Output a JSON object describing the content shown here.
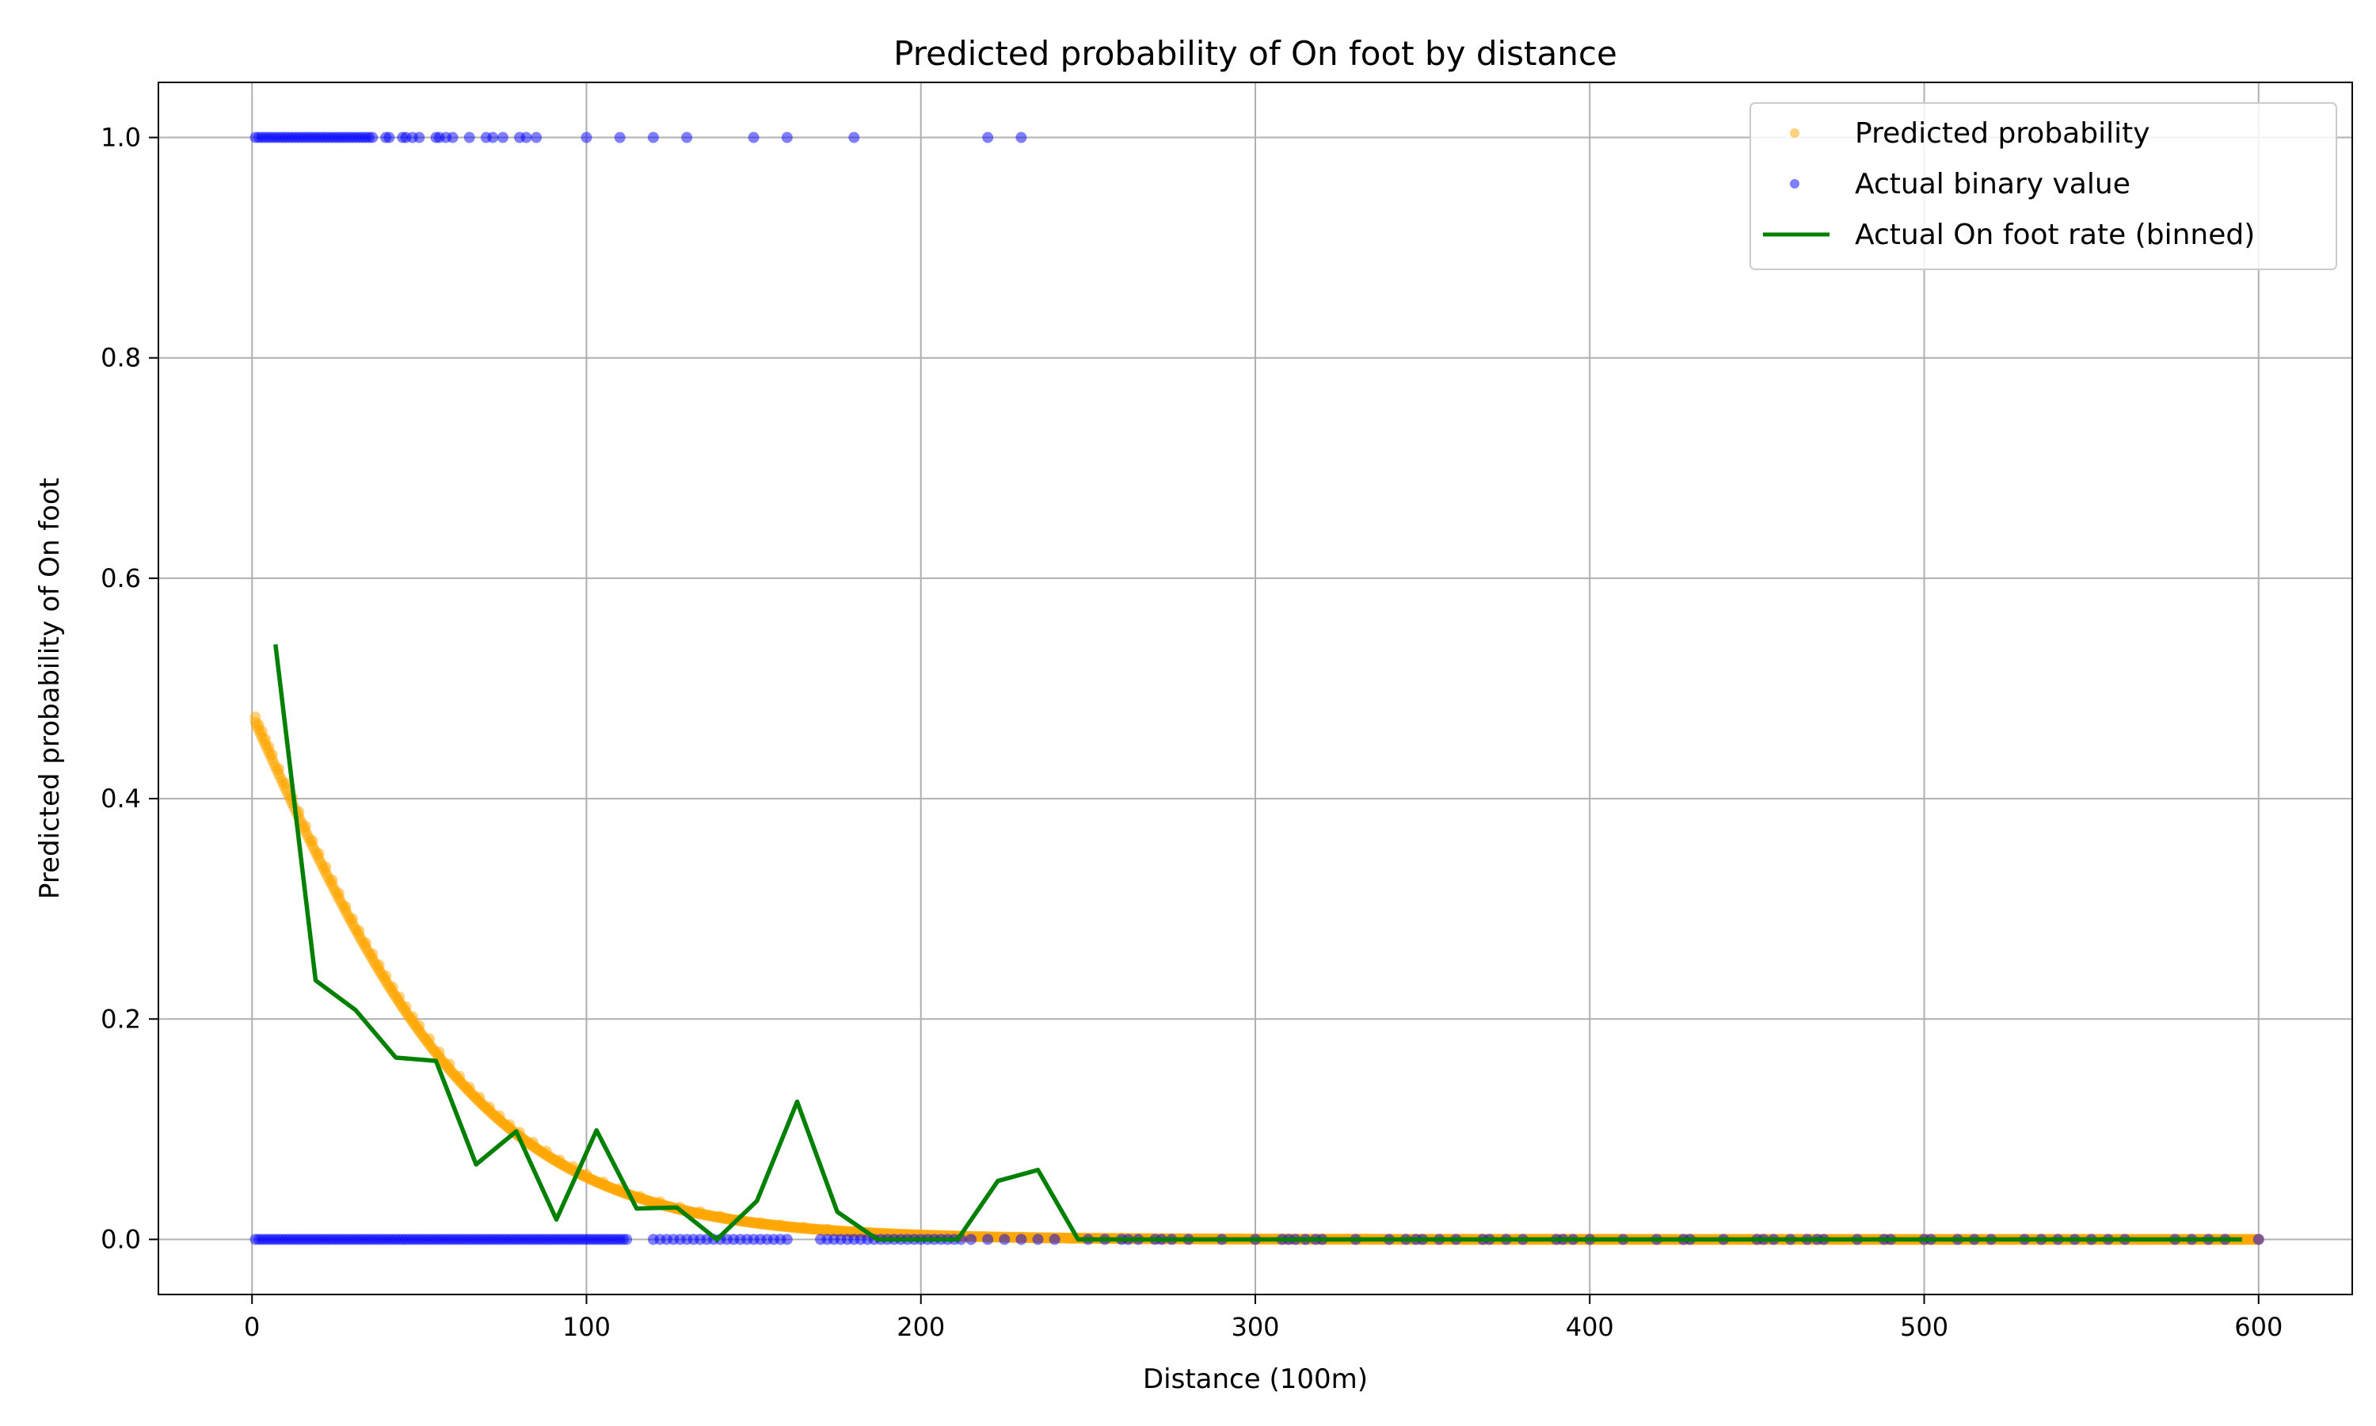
{
  "chart_data": {
    "type": "scatter",
    "title": "Predicted probability of On foot by distance",
    "xlabel": "Distance (100m)",
    "ylabel": "Predicted probability of On foot",
    "xlim": [
      -28,
      628
    ],
    "ylim": [
      -0.05,
      1.05
    ],
    "x_ticks": [
      0,
      100,
      200,
      300,
      400,
      500,
      600
    ],
    "x_tick_labels": [
      "0",
      "100",
      "200",
      "300",
      "400",
      "500",
      "600"
    ],
    "y_ticks": [
      0.0,
      0.2,
      0.4,
      0.6,
      0.8,
      1.0
    ],
    "y_tick_labels": [
      "0.0",
      "0.2",
      "0.4",
      "0.6",
      "0.8",
      "1.0"
    ],
    "grid": true,
    "legend_position": "top-right",
    "colors": {
      "predicted": "#ffa500",
      "actual": "#0000ff",
      "binned": "#008000",
      "grid": "#b0b0b0"
    },
    "predicted_model": {
      "intercept": -0.096,
      "slope": -0.0272,
      "x_start": 1,
      "x_end": 600
    },
    "series": [
      {
        "name": "Predicted probability",
        "kind": "scatter",
        "color": "#ffa500",
        "points": [
          [
            1,
            0.474
          ],
          [
            2,
            0.467
          ],
          [
            3,
            0.461
          ],
          [
            4,
            0.454
          ],
          [
            5,
            0.447
          ],
          [
            6,
            0.44
          ],
          [
            8,
            0.427
          ],
          [
            10,
            0.414
          ],
          [
            12,
            0.401
          ],
          [
            14,
            0.388
          ],
          [
            16,
            0.375
          ],
          [
            18,
            0.362
          ],
          [
            20,
            0.35
          ],
          [
            22,
            0.338
          ],
          [
            24,
            0.326
          ],
          [
            26,
            0.314
          ],
          [
            28,
            0.302
          ],
          [
            30,
            0.291
          ],
          [
            32,
            0.28
          ],
          [
            34,
            0.269
          ],
          [
            36,
            0.259
          ],
          [
            38,
            0.249
          ],
          [
            40,
            0.239
          ],
          [
            42,
            0.229
          ],
          [
            44,
            0.22
          ],
          [
            46,
            0.211
          ],
          [
            48,
            0.202
          ],
          [
            50,
            0.194
          ],
          [
            53,
            0.182
          ],
          [
            56,
            0.17
          ],
          [
            59,
            0.159
          ],
          [
            62,
            0.148
          ],
          [
            65,
            0.138
          ],
          [
            68,
            0.129
          ],
          [
            71,
            0.12
          ],
          [
            74,
            0.112
          ],
          [
            77,
            0.104
          ],
          [
            80,
            0.097
          ],
          [
            84,
            0.088
          ],
          [
            88,
            0.08
          ],
          [
            92,
            0.072
          ],
          [
            96,
            0.066
          ],
          [
            100,
            0.059
          ],
          [
            105,
            0.052
          ],
          [
            110,
            0.046
          ],
          [
            116,
            0.039
          ],
          [
            122,
            0.034
          ],
          [
            128,
            0.029
          ],
          [
            134,
            0.025
          ],
          [
            140,
            0.021
          ],
          [
            146,
            0.018
          ],
          [
            152,
            0.015
          ],
          [
            158,
            0.013
          ],
          [
            165,
            0.011
          ],
          [
            172,
            0.009
          ],
          [
            180,
            0.007
          ],
          [
            190,
            0.005
          ],
          [
            200,
            0.004
          ],
          [
            210,
            0.003
          ],
          [
            220,
            0.002
          ],
          [
            230,
            0.002
          ],
          [
            245,
            0.001
          ],
          [
            260,
            0.001
          ],
          [
            280,
            0.0
          ],
          [
            300,
            0.0
          ],
          [
            320,
            0.0
          ],
          [
            350,
            0.0
          ],
          [
            400,
            0.0
          ],
          [
            450,
            0.0
          ],
          [
            500,
            0.0
          ],
          [
            550,
            0.0
          ],
          [
            600,
            0.0
          ]
        ]
      },
      {
        "name": "Actual binary value",
        "kind": "scatter",
        "color": "#0000ff",
        "x_at_1": [
          1,
          2,
          3,
          4,
          5,
          6,
          7,
          8,
          9,
          10,
          11,
          12,
          13,
          14,
          15,
          16,
          17,
          18,
          19,
          20,
          21,
          22,
          23,
          24,
          25,
          26,
          27,
          28,
          29,
          30,
          31,
          32,
          33,
          34,
          35,
          36,
          40,
          41,
          45,
          46,
          48,
          50,
          55,
          56,
          58,
          60,
          65,
          70,
          72,
          75,
          80,
          82,
          85,
          100,
          110,
          120,
          130,
          150,
          160,
          180,
          220,
          230
        ],
        "x_at_0": [
          1,
          2,
          3,
          4,
          5,
          6,
          7,
          8,
          9,
          10,
          11,
          12,
          13,
          14,
          15,
          16,
          17,
          18,
          19,
          20,
          21,
          22,
          23,
          24,
          25,
          26,
          27,
          28,
          29,
          30,
          31,
          32,
          33,
          34,
          35,
          36,
          37,
          38,
          39,
          40,
          41,
          42,
          43,
          44,
          45,
          46,
          47,
          48,
          49,
          50,
          51,
          52,
          53,
          54,
          55,
          56,
          57,
          58,
          59,
          60,
          61,
          62,
          63,
          64,
          65,
          66,
          67,
          68,
          69,
          70,
          71,
          72,
          73,
          74,
          75,
          76,
          77,
          78,
          79,
          80,
          81,
          82,
          83,
          84,
          85,
          86,
          87,
          88,
          89,
          90,
          91,
          92,
          93,
          94,
          95,
          96,
          97,
          98,
          99,
          100,
          101,
          102,
          103,
          104,
          105,
          106,
          107,
          108,
          109,
          110,
          111,
          112,
          120,
          122,
          124,
          126,
          128,
          130,
          132,
          134,
          136,
          138,
          140,
          142,
          144,
          146,
          148,
          150,
          152,
          154,
          156,
          158,
          160,
          170,
          172,
          174,
          176,
          178,
          180,
          182,
          184,
          186,
          188,
          190,
          192,
          194,
          196,
          198,
          200,
          202,
          204,
          206,
          208,
          210,
          212,
          215,
          220,
          225,
          230,
          235,
          240,
          250,
          255,
          260,
          262,
          265,
          270,
          272,
          275,
          280,
          290,
          300,
          308,
          310,
          312,
          315,
          318,
          320,
          330,
          340,
          345,
          348,
          350,
          355,
          360,
          368,
          370,
          375,
          380,
          390,
          392,
          395,
          400,
          410,
          420,
          428,
          430,
          440,
          450,
          452,
          455,
          460,
          465,
          468,
          470,
          480,
          488,
          490,
          500,
          502,
          510,
          515,
          520,
          530,
          535,
          540,
          545,
          550,
          555,
          560,
          575,
          580,
          585,
          590,
          600
        ]
      },
      {
        "name": "Actual On foot rate (binned)",
        "kind": "line",
        "color": "#008000",
        "points": [
          [
            7,
            0.54
          ],
          [
            19,
            0.235
          ],
          [
            31,
            0.208
          ],
          [
            43,
            0.165
          ],
          [
            55,
            0.162
          ],
          [
            67,
            0.068
          ],
          [
            79,
            0.098
          ],
          [
            91,
            0.018
          ],
          [
            103,
            0.099
          ],
          [
            115,
            0.028
          ],
          [
            127,
            0.029
          ],
          [
            139,
            0.0
          ],
          [
            151,
            0.035
          ],
          [
            163,
            0.125
          ],
          [
            175,
            0.025
          ],
          [
            187,
            0.0
          ],
          [
            199,
            0.0
          ],
          [
            211,
            0.0
          ],
          [
            223,
            0.053
          ],
          [
            235,
            0.063
          ],
          [
            247,
            0.0
          ],
          [
            259,
            0.0
          ],
          [
            271,
            0.0
          ],
          [
            283,
            0.0
          ],
          [
            295,
            0.0
          ],
          [
            307,
            0.0
          ],
          [
            319,
            0.0
          ],
          [
            331,
            0.0
          ],
          [
            343,
            0.0
          ],
          [
            355,
            0.0
          ],
          [
            367,
            0.0
          ],
          [
            379,
            0.0
          ],
          [
            391,
            0.0
          ],
          [
            403,
            0.0
          ],
          [
            415,
            0.0
          ],
          [
            427,
            0.0
          ],
          [
            439,
            0.0
          ],
          [
            451,
            0.0
          ],
          [
            463,
            0.0
          ],
          [
            475,
            0.0
          ],
          [
            487,
            0.0
          ],
          [
            499,
            0.0
          ],
          [
            511,
            0.0
          ],
          [
            523,
            0.0
          ],
          [
            535,
            0.0
          ],
          [
            547,
            0.0
          ],
          [
            559,
            0.0
          ],
          [
            571,
            0.0
          ],
          [
            583,
            0.0
          ],
          [
            595,
            0.0
          ]
        ]
      }
    ]
  }
}
